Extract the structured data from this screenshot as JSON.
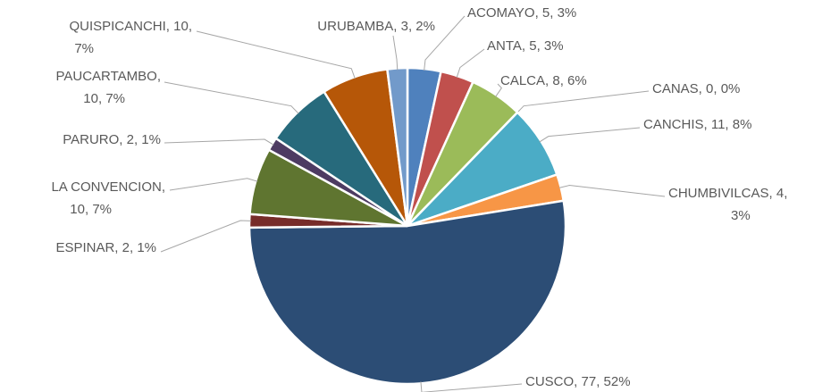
{
  "chart_data": {
    "type": "pie",
    "categories": [
      "ACOMAYO",
      "ANTA",
      "CALCA",
      "CANAS",
      "CANCHIS",
      "CHUMBIVILCAS",
      "CUSCO",
      "ESPINAR",
      "LA CONVENCION",
      "PARURO",
      "PAUCARTAMBO",
      "QUISPICANCHI",
      "URUBAMBA"
    ],
    "values": [
      5,
      5,
      8,
      0,
      11,
      4,
      77,
      2,
      10,
      2,
      10,
      10,
      3
    ],
    "value_labels": [
      "ACOMAYO, 5, 3%",
      "ANTA, 5, 3%",
      "CALCA, 8, 6%",
      "CANAS, 0, 0%",
      "CANCHIS, 11, 8%",
      "CHUMBIVILCAS, 4,\n3%",
      "CUSCO, 77, 52%",
      "ESPINAR, 2, 1%",
      "LA CONVENCION,\n10, 7%",
      "PARURO, 2, 1%",
      "PAUCARTAMBO,\n10, 7%",
      "QUISPICANCHI, 10,\n7%",
      "URUBAMBA, 3, 2%"
    ],
    "colors": [
      "#4f81bd",
      "#c0504d",
      "#9bbb59",
      "#8064a2",
      "#4bacc6",
      "#f79646",
      "#2c4d75",
      "#772c2a",
      "#5f7530",
      "#4d3b62",
      "#276a7c",
      "#b65708",
      "#729aca"
    ]
  }
}
